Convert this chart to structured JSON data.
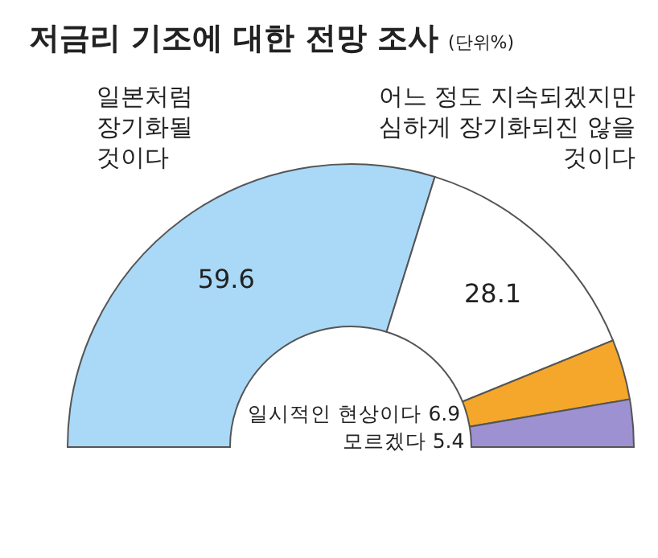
{
  "chart_data": {
    "type": "donut",
    "title": "저금리 기조에 대한 전망 조사",
    "subtitle": "(단위%)",
    "categories": [
      "일본처럼 장기화될 것이다",
      "어느 정도 지속되겠지만 심하게 장기화되진 않을 것이다",
      "일시적인 현상이다",
      "모르겠다"
    ],
    "values": [
      59.6,
      28.1,
      6.9,
      5.4
    ],
    "colors": [
      "#a9d9f7",
      "#ffffff",
      "#f4a72a",
      "#9d91d2"
    ],
    "data_labels": true
  }
}
